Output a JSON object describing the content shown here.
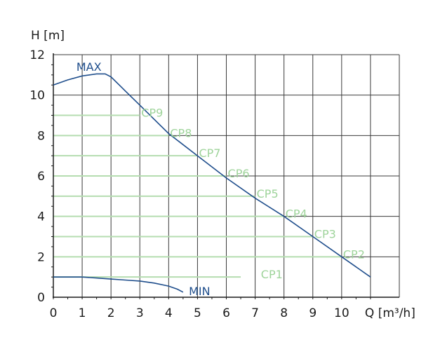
{
  "chart_data": {
    "type": "line",
    "xlabel": "Q [m³/h]",
    "ylabel": "H [m]",
    "xlim": [
      0,
      12
    ],
    "ylim": [
      0,
      12
    ],
    "x_ticks": [
      "0",
      "1",
      "2",
      "3",
      "4",
      "5",
      "6",
      "7",
      "8",
      "9",
      "10",
      "Q [m³/h]"
    ],
    "y_ticks": [
      "0",
      "2",
      "4",
      "6",
      "8",
      "10",
      "12"
    ],
    "grid": true,
    "colors": {
      "curve": "#1f4e8c",
      "cp": "#b5ddb0",
      "cp_text": "#9fd49b",
      "grid": "#3a3a3a",
      "axis": "#1a1a1a"
    },
    "series": [
      {
        "name": "MAX",
        "x": [
          0,
          0.5,
          1.0,
          1.5,
          1.8,
          2.0,
          2.5,
          3.0,
          3.5,
          4.0,
          5.0,
          6.0,
          7.0,
          8.0,
          9.0,
          10.0,
          11.0
        ],
        "y": [
          10.5,
          10.75,
          10.95,
          11.05,
          11.05,
          10.9,
          10.2,
          9.5,
          8.8,
          8.1,
          7.0,
          5.9,
          4.9,
          4.0,
          3.0,
          2.0,
          1.0
        ]
      },
      {
        "name": "MIN",
        "x": [
          0,
          0.5,
          1.0,
          1.5,
          2.0,
          2.5,
          3.0,
          3.5,
          4.0,
          4.3,
          4.5
        ],
        "y": [
          1.0,
          1.0,
          1.0,
          0.95,
          0.9,
          0.85,
          0.8,
          0.7,
          0.55,
          0.4,
          0.25
        ]
      }
    ],
    "constant_pressure": [
      {
        "name": "CP1",
        "h": 1,
        "qmax": 6.5
      },
      {
        "name": "CP2",
        "h": 2,
        "qmax": 10.0
      },
      {
        "name": "CP3",
        "h": 3,
        "qmax": 9.0
      },
      {
        "name": "CP4",
        "h": 4,
        "qmax": 8.0
      },
      {
        "name": "CP5",
        "h": 5,
        "qmax": 7.0
      },
      {
        "name": "CP6",
        "h": 6,
        "qmax": 6.0
      },
      {
        "name": "CP7",
        "h": 7,
        "qmax": 5.0
      },
      {
        "name": "CP8",
        "h": 8,
        "qmax": 4.0
      },
      {
        "name": "CP9",
        "h": 9,
        "qmax": 3.0
      }
    ]
  }
}
